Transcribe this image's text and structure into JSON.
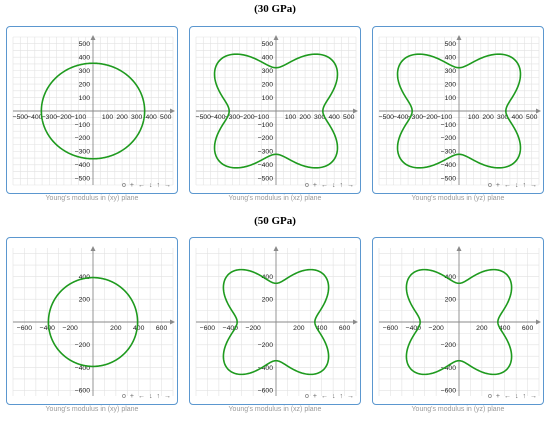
{
  "sections": [
    {
      "title": "(30 GPa)"
    },
    {
      "title": "(50 GPa)"
    }
  ],
  "toolbar": [
    "o",
    "+",
    "←",
    "↓",
    "↑",
    "→"
  ],
  "colors": {
    "curve": "#1e9a1e",
    "panel_border": "#5b97cf",
    "grid": "#e2e2e2",
    "axis": "#8a8a8a"
  },
  "chart_data": [
    {
      "type": "line",
      "plane": "xy",
      "caption": "Young's modulus in (xy) plane",
      "xlim": [
        -550,
        550
      ],
      "ylim": [
        -550,
        550
      ],
      "grid": true,
      "x_ticks": [
        -500,
        -400,
        -300,
        -200,
        -100,
        100,
        200,
        300,
        400,
        500
      ],
      "y_ticks": [
        500,
        400,
        300,
        200,
        100,
        -100,
        -200,
        -300,
        -400,
        -500
      ],
      "x_tick_labels": [
        "−500",
        "−400",
        "−300",
        "−200",
        "−100",
        "100",
        "200",
        "300",
        "400",
        "500"
      ],
      "y_tick_labels": [
        "500",
        "400",
        "300",
        "200",
        "100",
        "−100",
        "−200",
        "−300",
        "−400",
        "−500"
      ],
      "series": [
        {
          "shape": "polar",
          "radius_axes": 355,
          "radius_diagonal": 355
        }
      ]
    },
    {
      "type": "line",
      "plane": "xz",
      "caption": "Young's modulus in (xz) plane",
      "xlim": [
        -550,
        550
      ],
      "ylim": [
        -550,
        550
      ],
      "grid": true,
      "x_ticks": [
        -500,
        -400,
        -300,
        -200,
        -100,
        100,
        200,
        300,
        400,
        500
      ],
      "y_ticks": [
        500,
        400,
        300,
        200,
        100,
        -100,
        -200,
        -300,
        -400,
        -500
      ],
      "x_tick_labels": [
        "−500",
        "−400",
        "−300",
        "−200",
        "−100",
        "100",
        "200",
        "300",
        "400",
        "500"
      ],
      "y_tick_labels": [
        "500",
        "400",
        "300",
        "200",
        "100",
        "−100",
        "−200",
        "−300",
        "−400",
        "−500"
      ],
      "series": [
        {
          "shape": "polar",
          "radius_axes": 322,
          "radius_diagonal": 540
        }
      ]
    },
    {
      "type": "line",
      "plane": "yz",
      "caption": "Young's modulus in (yz) plane",
      "xlim": [
        -550,
        550
      ],
      "ylim": [
        -550,
        550
      ],
      "grid": true,
      "x_ticks": [
        -500,
        -400,
        -300,
        -200,
        -100,
        100,
        200,
        300,
        400,
        500
      ],
      "y_ticks": [
        500,
        400,
        300,
        200,
        100,
        -100,
        -200,
        -300,
        -400,
        -500
      ],
      "x_tick_labels": [
        "−500",
        "−400",
        "−300",
        "−200",
        "−100",
        "100",
        "200",
        "300",
        "400",
        "500"
      ],
      "y_tick_labels": [
        "500",
        "400",
        "300",
        "200",
        "100",
        "−100",
        "−200",
        "−300",
        "−400",
        "−500"
      ],
      "series": [
        {
          "shape": "polar",
          "radius_axes": 322,
          "radius_diagonal": 540
        }
      ]
    },
    {
      "type": "line",
      "plane": "xy",
      "caption": "Young's modulus in (xy) plane",
      "xlim": [
        -700,
        700
      ],
      "ylim": [
        -650,
        650
      ],
      "grid": true,
      "x_ticks": [
        -600,
        -400,
        -200,
        200,
        400,
        600
      ],
      "y_ticks": [
        400,
        200,
        -200,
        -400,
        -600
      ],
      "x_tick_labels": [
        "−600",
        "−400",
        "−200",
        "200",
        "400",
        "600"
      ],
      "y_tick_labels": [
        "400",
        "200",
        "−200",
        "−400",
        "−600"
      ],
      "series": [
        {
          "shape": "polar",
          "radius_axes": 390,
          "radius_diagonal": 390
        }
      ]
    },
    {
      "type": "line",
      "plane": "xz",
      "caption": "Young's modulus in (xz) plane",
      "xlim": [
        -700,
        700
      ],
      "ylim": [
        -650,
        650
      ],
      "grid": true,
      "x_ticks": [
        -600,
        -400,
        -200,
        200,
        400,
        600
      ],
      "y_ticks": [
        400,
        200,
        -200,
        -400,
        -600
      ],
      "x_tick_labels": [
        "−600",
        "−400",
        "−200",
        "200",
        "400",
        "600"
      ],
      "y_tick_labels": [
        "400",
        "200",
        "−200",
        "−400",
        "−600"
      ],
      "series": [
        {
          "shape": "polar",
          "radius_axes": 340,
          "radius_diagonal": 590
        }
      ]
    },
    {
      "type": "line",
      "plane": "yz",
      "caption": "Young's modulus in (yz) plane",
      "xlim": [
        -700,
        700
      ],
      "ylim": [
        -650,
        650
      ],
      "grid": true,
      "x_ticks": [
        -600,
        -400,
        -200,
        200,
        400,
        600
      ],
      "y_ticks": [
        400,
        200,
        -200,
        -400,
        -600
      ],
      "x_tick_labels": [
        "−600",
        "−400",
        "−200",
        "200",
        "400",
        "600"
      ],
      "y_tick_labels": [
        "400",
        "200",
        "−200",
        "−400",
        "−600"
      ],
      "series": [
        {
          "shape": "polar",
          "radius_axes": 340,
          "radius_diagonal": 590
        }
      ]
    }
  ]
}
